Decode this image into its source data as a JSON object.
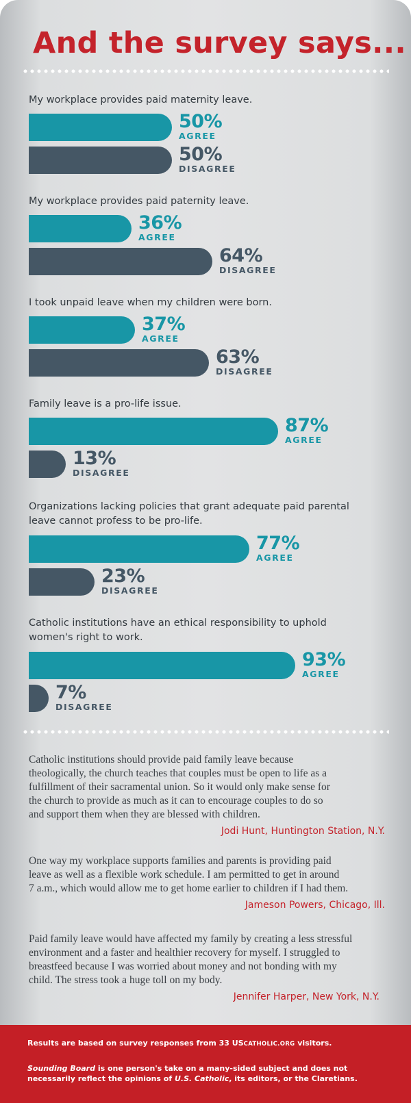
{
  "title": "And the survey says...",
  "colors": {
    "agree": "#1896a6",
    "disagree": "#455765",
    "accent": "#c4232b",
    "footer": "#c41f26"
  },
  "chart_data": {
    "type": "bar",
    "orientation": "horizontal",
    "xlim": [
      0,
      100
    ],
    "unit": "%",
    "questions": [
      {
        "text": "My workplace provides paid maternity leave.",
        "agree": 50,
        "disagree": 50,
        "agree_label": "50%",
        "disagree_label": "50%"
      },
      {
        "text": "My workplace provides paid paternity leave.",
        "agree": 36,
        "disagree": 64,
        "agree_label": "36%",
        "disagree_label": "64%"
      },
      {
        "text": "I took unpaid leave when my children were born.",
        "agree": 37,
        "disagree": 63,
        "agree_label": "37%",
        "disagree_label": "63%"
      },
      {
        "text": "Family leave is a pro-life issue.",
        "agree": 87,
        "disagree": 13,
        "agree_label": "87%",
        "disagree_label": "13%"
      },
      {
        "text": "Organizations lacking policies that grant adequate paid parental\nleave cannot profess to be pro-life.",
        "agree": 77,
        "disagree": 23,
        "agree_label": "77%",
        "disagree_label": "23%"
      },
      {
        "text": "Catholic institutions have an ethical responsibility to uphold\nwomen's right to work.",
        "agree": 93,
        "disagree": 7,
        "agree_label": "93%",
        "disagree_label": "7%"
      }
    ],
    "agree_word": "AGREE",
    "disagree_word": "DISAGREE"
  },
  "quotes": [
    {
      "text": "Catholic institutions should provide paid family leave because\ntheologically, the church teaches that couples must be open to life as a\nfulfillment of their sacramental union. So it would only make sense for\nthe church to provide as much as it can to encourage couples to do so\nand support them when they are blessed with children.",
      "author": "Jodi Hunt, Huntington Station, N.Y."
    },
    {
      "text": "One way my workplace supports families and parents is providing paid\nleave as well as a flexible work schedule. I am permitted to get in around\n7 a.m., which would allow me to get home earlier to children if I had them.",
      "author": "Jameson Powers, Chicago, Ill."
    },
    {
      "text": "Paid family leave would have affected my family by creating a less stressful\nenvironment and a faster and healthier recovery for myself. I struggled to\nbreastfeed because I was worried about money and not bonding with my\nchild. The stress took a huge toll on my body.",
      "author": "Jennifer Harper, New York, N.Y."
    }
  ],
  "footer": {
    "line1_a": "Results are based on survey responses from 33 US",
    "line1_sc": "CATHOLIC.ORG",
    "line1_b": " visitors.",
    "line2_i1": "Sounding Board",
    "line2_a": " is one person's take on a many-sided subject and does not necessarily reflect the opinions of ",
    "line2_i2": "U.S. Catholic",
    "line2_b": ", its editors, or the Claretians."
  }
}
